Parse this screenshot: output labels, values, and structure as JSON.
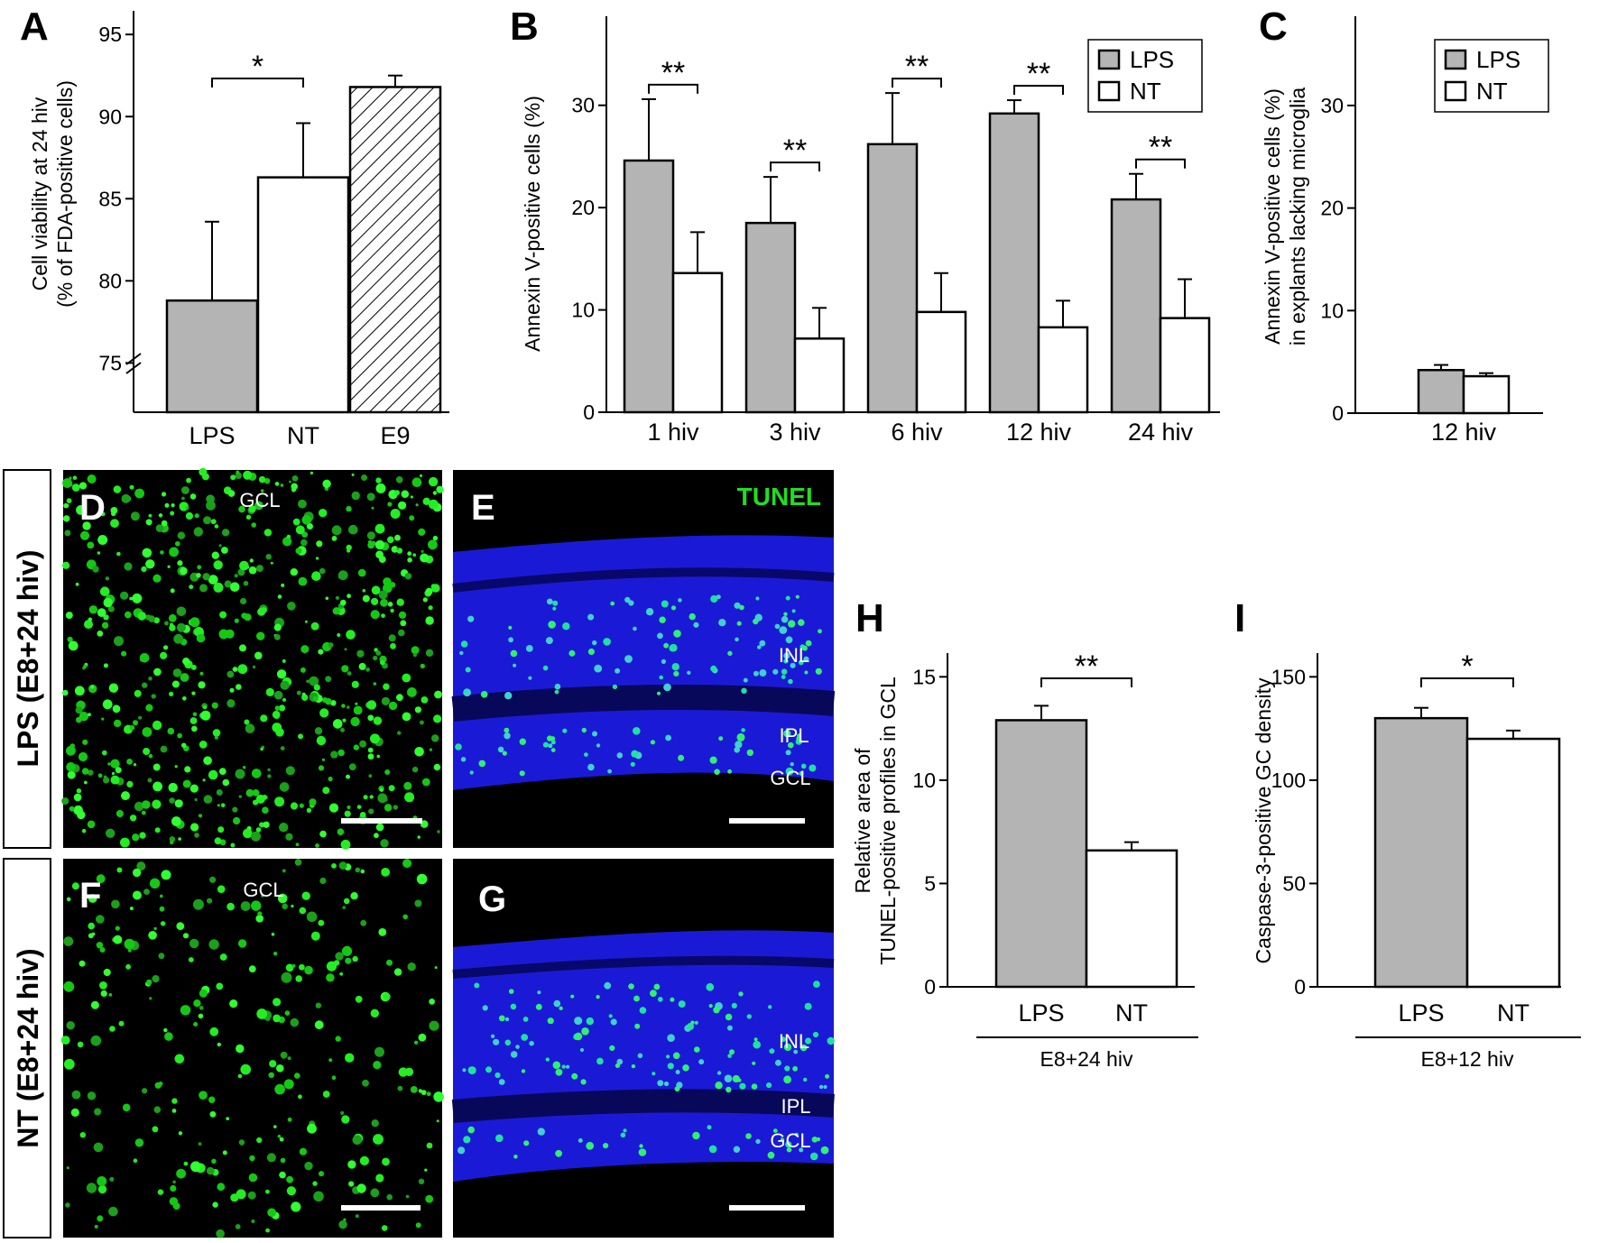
{
  "chart_data": [
    {
      "panel": "A",
      "type": "bar",
      "categories": [
        "LPS",
        "NT",
        "E9"
      ],
      "values": [
        78.8,
        86.3,
        91.8
      ],
      "errors": [
        4.8,
        3.3,
        0.7
      ],
      "ylabel": "Cell viability at 24 hiv",
      "ylabel2": "(% of FDA-positive cells)",
      "ylim": [
        72,
        96
      ],
      "yticks": [
        75,
        80,
        85,
        90,
        95
      ],
      "significance": [
        {
          "from": 0,
          "to": 1,
          "label": "*"
        }
      ]
    },
    {
      "panel": "B",
      "type": "bar",
      "categories": [
        "1 hiv",
        "3 hiv",
        "6 hiv",
        "12 hiv",
        "24 hiv"
      ],
      "series": [
        {
          "name": "LPS",
          "values": [
            24.6,
            18.5,
            26.2,
            29.2,
            20.8
          ],
          "errors": [
            6.0,
            4.5,
            5.0,
            1.3,
            2.5
          ]
        },
        {
          "name": "NT",
          "values": [
            13.6,
            7.2,
            9.8,
            8.3,
            9.2
          ],
          "errors": [
            4.0,
            3.0,
            3.8,
            2.6,
            3.8
          ]
        }
      ],
      "ylabel": "Annexin V-positive cells (%)",
      "ylim": [
        0,
        38
      ],
      "yticks": [
        0,
        10,
        20,
        30
      ],
      "significance_label": "**",
      "legend": "top-right"
    },
    {
      "panel": "C",
      "type": "bar",
      "categories": [
        "12 hiv"
      ],
      "series": [
        {
          "name": "LPS",
          "values": [
            4.2
          ],
          "errors": [
            0.5
          ]
        },
        {
          "name": "NT",
          "values": [
            3.6
          ],
          "errors": [
            0.3
          ]
        }
      ],
      "ylabel": "Annexin V-positive cells (%)",
      "ylabel2": "in explants lacking microglia",
      "ylim": [
        0,
        38
      ],
      "yticks": [
        0,
        10,
        20,
        30
      ],
      "legend": "top-right"
    },
    {
      "panel": "H",
      "type": "bar",
      "categories": [
        "LPS",
        "NT"
      ],
      "values": [
        12.9,
        6.6
      ],
      "errors": [
        0.7,
        0.4
      ],
      "ylabel": "Relative area of",
      "ylabel2": "TUNEL-positive profiles in GCL",
      "ylim": [
        0,
        15.8
      ],
      "yticks": [
        0,
        5,
        10,
        15
      ],
      "group_label": "E8+24 hiv",
      "significance": [
        {
          "from": 0,
          "to": 1,
          "label": "**"
        }
      ]
    },
    {
      "panel": "I",
      "type": "bar",
      "categories": [
        "LPS",
        "NT"
      ],
      "values": [
        130,
        120
      ],
      "errors": [
        5,
        4
      ],
      "ylabel": "Caspase-3-positive GC density",
      "ylim": [
        0,
        158
      ],
      "yticks": [
        0,
        50,
        100,
        150
      ],
      "group_label": "E8+12 hiv",
      "significance": [
        {
          "from": 0,
          "to": 1,
          "label": "*"
        }
      ]
    }
  ],
  "micrographs": {
    "side_labels": [
      "LPS (E8+24 hiv)",
      "NT (E8+24 hiv)"
    ],
    "D": {
      "panel": "D",
      "label": "GCL"
    },
    "E": {
      "panel": "E",
      "stain": "TUNEL",
      "layers": [
        "INL",
        "IPL",
        "GCL"
      ]
    },
    "F": {
      "panel": "F",
      "label": "GCL"
    },
    "G": {
      "panel": "G",
      "layers": [
        "INL",
        "IPL",
        "GCL"
      ]
    }
  },
  "colors": {
    "lps": "#b4b4b4",
    "nt": "#ffffff",
    "tunel": "#22dd22",
    "nuclei": "#1414e0"
  }
}
